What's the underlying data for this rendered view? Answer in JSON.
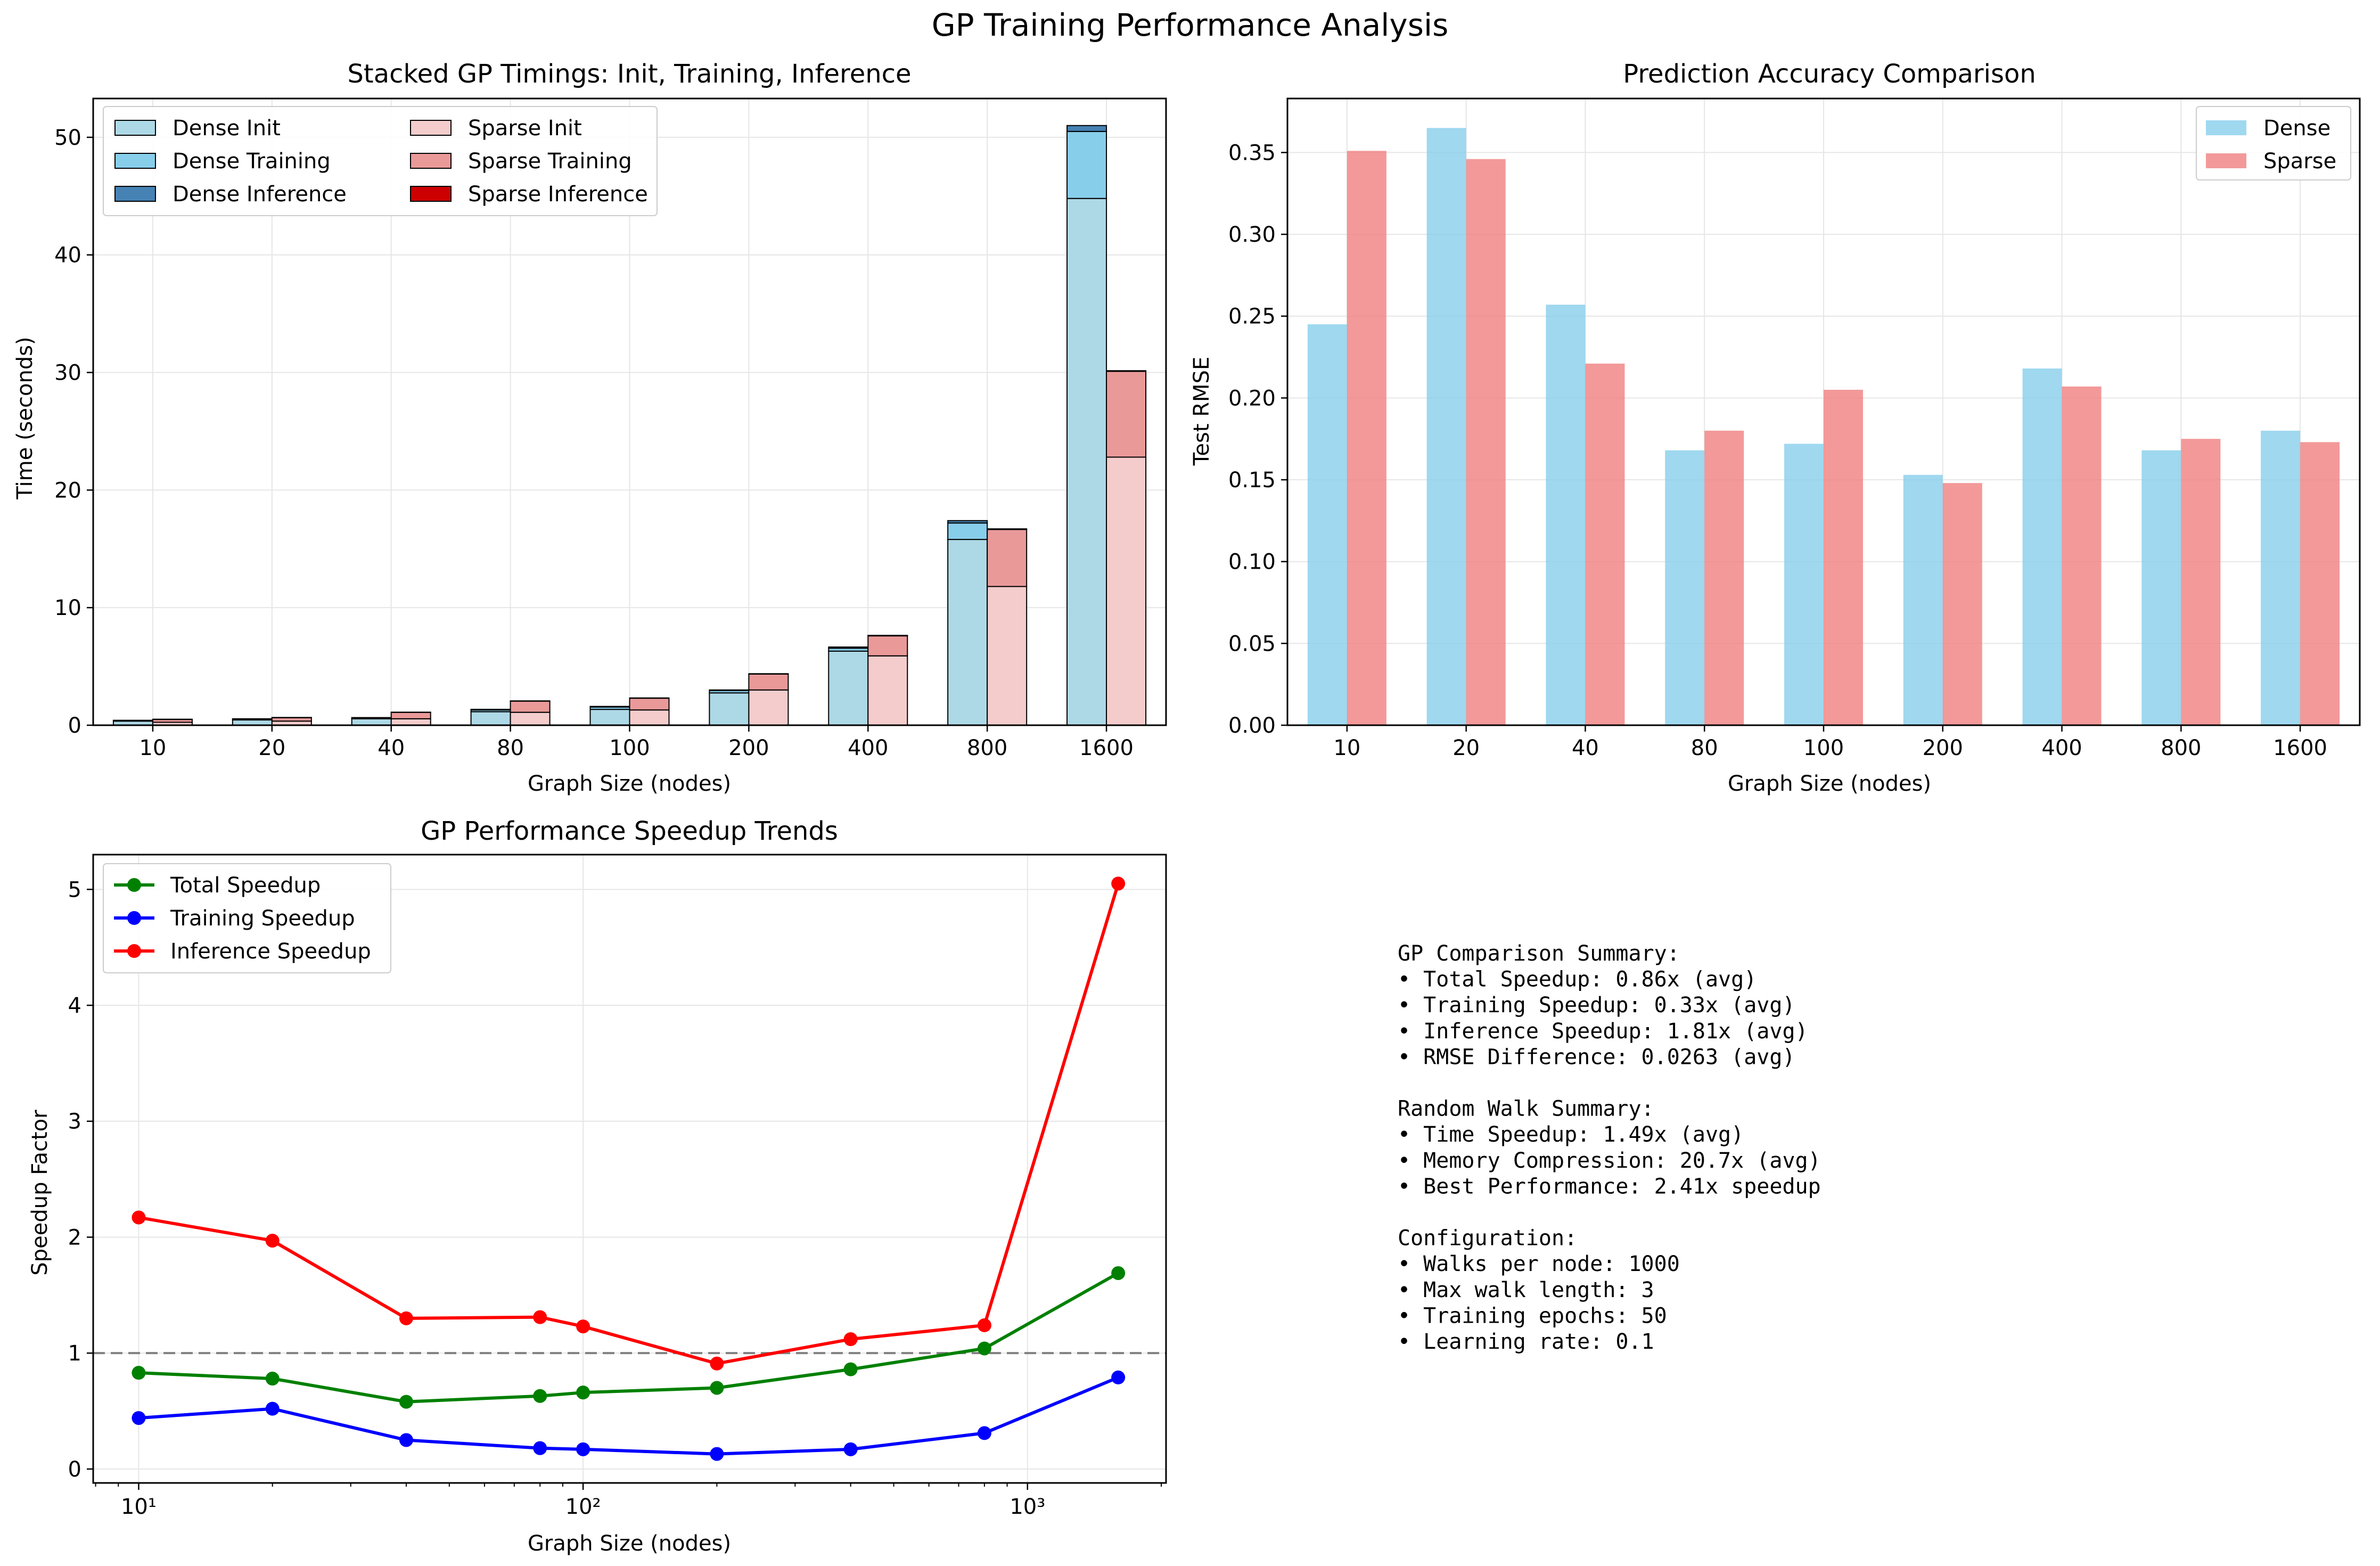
{
  "suptitle": "GP Training Performance Analysis",
  "colors": {
    "dense_init": "#add8e6",
    "dense_training": "#87ceeb",
    "dense_inference": "#4682b4",
    "sparse_init": "#f4cccc",
    "sparse_training": "#ea9999",
    "sparse_inference": "#cc0000",
    "dense_bar": "#87ceeb",
    "sparse_bar": "#f08080",
    "total": "#008000",
    "training": "#0000ff",
    "inference": "#ff0000",
    "baseline": "#808080",
    "grid": "#e6e6e6"
  },
  "summary_text": "GP Comparison Summary:\n• Total Speedup: 0.86x (avg)\n• Training Speedup: 0.33x (avg)\n• Inference Speedup: 1.81x (avg)\n• RMSE Difference: 0.0263 (avg)\n\nRandom Walk Summary:\n• Time Speedup: 1.49x (avg)\n• Memory Compression: 20.7x (avg)\n• Best Performance: 2.41x speedup\n\nConfiguration:\n• Walks per node: 1000\n• Max walk length: 3\n• Training epochs: 50\n• Learning rate: 0.1",
  "chart_data": [
    {
      "type": "bar",
      "stacked": true,
      "title": "Stacked GP Timings: Init, Training, Inference",
      "xlabel": "Graph Size (nodes)",
      "ylabel": "Time (seconds)",
      "categories": [
        "10",
        "20",
        "40",
        "80",
        "100",
        "200",
        "400",
        "800",
        "1600"
      ],
      "ylim": [
        0,
        53.3
      ],
      "yticks": [
        0,
        10,
        20,
        30,
        40,
        50
      ],
      "grid": true,
      "legend_position": "upper-left",
      "legend_columns": 2,
      "series": [
        {
          "name": "Dense Init",
          "group": "dense",
          "values": [
            0.35,
            0.45,
            0.55,
            1.15,
            1.35,
            2.75,
            6.3,
            15.8,
            44.8
          ]
        },
        {
          "name": "Dense Training",
          "group": "dense",
          "values": [
            0.05,
            0.08,
            0.08,
            0.15,
            0.2,
            0.2,
            0.25,
            1.4,
            5.7
          ]
        },
        {
          "name": "Dense Inference",
          "group": "dense",
          "values": [
            0.02,
            0.02,
            0.02,
            0.05,
            0.05,
            0.05,
            0.1,
            0.2,
            0.5
          ]
        },
        {
          "name": "Sparse Init",
          "group": "sparse",
          "values": [
            0.25,
            0.35,
            0.55,
            1.1,
            1.3,
            3.0,
            5.9,
            11.8,
            22.8
          ]
        },
        {
          "name": "Sparse Training",
          "group": "sparse",
          "values": [
            0.25,
            0.3,
            0.55,
            0.95,
            1.0,
            1.35,
            1.7,
            4.85,
            7.3
          ]
        },
        {
          "name": "Sparse Inference",
          "group": "sparse",
          "values": [
            0.01,
            0.01,
            0.01,
            0.02,
            0.02,
            0.03,
            0.04,
            0.05,
            0.05
          ]
        }
      ]
    },
    {
      "type": "bar",
      "title": "Prediction Accuracy Comparison",
      "xlabel": "Graph Size (nodes)",
      "ylabel": "Test RMSE",
      "categories": [
        "10",
        "20",
        "40",
        "80",
        "100",
        "200",
        "400",
        "800",
        "1600"
      ],
      "ylim": [
        0,
        0.383
      ],
      "yticks": [
        0.0,
        0.05,
        0.1,
        0.15,
        0.2,
        0.25,
        0.3,
        0.35
      ],
      "ytick_labels": [
        "0.00",
        "0.05",
        "0.10",
        "0.15",
        "0.20",
        "0.25",
        "0.30",
        "0.35"
      ],
      "grid": true,
      "legend_position": "upper-right",
      "series": [
        {
          "name": "Dense",
          "values": [
            0.245,
            0.365,
            0.257,
            0.168,
            0.172,
            0.153,
            0.218,
            0.168,
            0.18
          ]
        },
        {
          "name": "Sparse",
          "values": [
            0.351,
            0.346,
            0.221,
            0.18,
            0.205,
            0.148,
            0.207,
            0.175,
            0.173
          ]
        }
      ]
    },
    {
      "type": "line",
      "title": "GP Performance Speedup Trends",
      "xlabel": "Graph Size (nodes)",
      "ylabel": "Speedup Factor",
      "x": [
        10,
        20,
        40,
        80,
        100,
        200,
        400,
        800,
        1600
      ],
      "xscale": "log",
      "xlim": [
        7.9,
        2050
      ],
      "xticks": [
        10,
        100,
        1000
      ],
      "xtick_labels": [
        "10¹",
        "10²",
        "10³"
      ],
      "ylim": [
        -0.12,
        5.3
      ],
      "yticks": [
        0,
        1,
        2,
        3,
        4,
        5
      ],
      "grid": true,
      "legend_position": "upper-left",
      "reference_line": {
        "y": 1.0,
        "style": "dashed"
      },
      "series": [
        {
          "name": "Total Speedup",
          "values": [
            0.83,
            0.78,
            0.58,
            0.63,
            0.66,
            0.7,
            0.86,
            1.04,
            1.69
          ]
        },
        {
          "name": "Training Speedup",
          "values": [
            0.44,
            0.52,
            0.25,
            0.18,
            0.17,
            0.13,
            0.17,
            0.31,
            0.79
          ]
        },
        {
          "name": "Inference Speedup",
          "values": [
            2.17,
            1.97,
            1.3,
            1.31,
            1.23,
            0.91,
            1.12,
            1.24,
            5.05
          ]
        }
      ]
    }
  ]
}
